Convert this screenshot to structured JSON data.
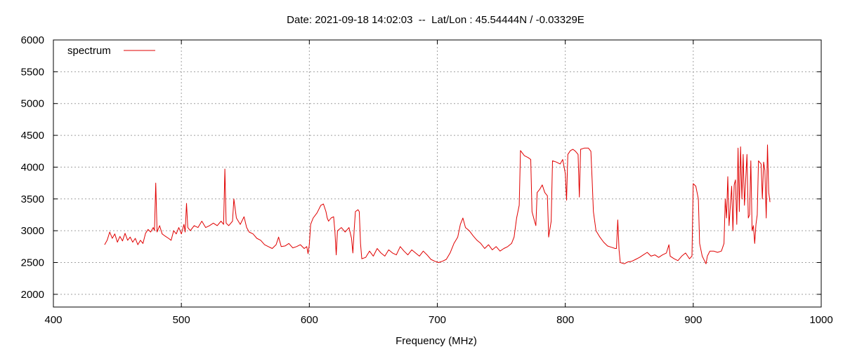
{
  "chart_data": {
    "type": "line",
    "title": "Date: 2021-09-18 14:02:03  --  Lat/Lon : 45.54444N / -0.03329E",
    "xlabel": "Frequency (MHz)",
    "ylabel": "",
    "xlim": [
      400,
      1000
    ],
    "ylim": [
      1800,
      6000
    ],
    "xticks": [
      "400",
      "500",
      "600",
      "700",
      "800",
      "900",
      "1000"
    ],
    "yticks": [
      "2000",
      "2500",
      "3000",
      "3500",
      "4000",
      "4500",
      "5000",
      "5500",
      "6000"
    ],
    "grid": true,
    "legend": "top-left",
    "series": [
      {
        "name": "spectrum",
        "color": "#e00000",
        "points": [
          [
            440,
            2780
          ],
          [
            442,
            2850
          ],
          [
            444,
            2980
          ],
          [
            446,
            2880
          ],
          [
            448,
            2950
          ],
          [
            450,
            2820
          ],
          [
            452,
            2910
          ],
          [
            454,
            2840
          ],
          [
            456,
            2960
          ],
          [
            458,
            2850
          ],
          [
            460,
            2900
          ],
          [
            462,
            2820
          ],
          [
            464,
            2880
          ],
          [
            466,
            2780
          ],
          [
            468,
            2850
          ],
          [
            470,
            2800
          ],
          [
            472,
            2960
          ],
          [
            474,
            3020
          ],
          [
            476,
            2980
          ],
          [
            478,
            3050
          ],
          [
            479,
            3000
          ],
          [
            480,
            3750
          ],
          [
            481,
            2980
          ],
          [
            483,
            3080
          ],
          [
            485,
            2950
          ],
          [
            487,
            2920
          ],
          [
            490,
            2880
          ],
          [
            492,
            2850
          ],
          [
            494,
            3000
          ],
          [
            496,
            2950
          ],
          [
            498,
            3050
          ],
          [
            500,
            2950
          ],
          [
            502,
            3100
          ],
          [
            503,
            2980
          ],
          [
            504,
            3430
          ],
          [
            505,
            3050
          ],
          [
            507,
            3000
          ],
          [
            510,
            3080
          ],
          [
            513,
            3050
          ],
          [
            516,
            3150
          ],
          [
            519,
            3050
          ],
          [
            522,
            3080
          ],
          [
            525,
            3120
          ],
          [
            528,
            3080
          ],
          [
            531,
            3150
          ],
          [
            533,
            3100
          ],
          [
            534,
            3970
          ],
          [
            535,
            3120
          ],
          [
            537,
            3080
          ],
          [
            540,
            3150
          ],
          [
            541,
            3500
          ],
          [
            543,
            3200
          ],
          [
            546,
            3100
          ],
          [
            549,
            3220
          ],
          [
            551,
            3050
          ],
          [
            553,
            2980
          ],
          [
            556,
            2950
          ],
          [
            559,
            2880
          ],
          [
            562,
            2850
          ],
          [
            565,
            2780
          ],
          [
            568,
            2750
          ],
          [
            571,
            2720
          ],
          [
            574,
            2780
          ],
          [
            576,
            2900
          ],
          [
            578,
            2750
          ],
          [
            581,
            2760
          ],
          [
            584,
            2800
          ],
          [
            587,
            2730
          ],
          [
            590,
            2750
          ],
          [
            593,
            2780
          ],
          [
            596,
            2720
          ],
          [
            598,
            2750
          ],
          [
            599,
            2640
          ],
          [
            600,
            2780
          ],
          [
            601,
            3100
          ],
          [
            603,
            3200
          ],
          [
            606,
            3280
          ],
          [
            609,
            3400
          ],
          [
            611,
            3420
          ],
          [
            613,
            3300
          ],
          [
            614,
            3200
          ],
          [
            615,
            3150
          ],
          [
            617,
            3200
          ],
          [
            619,
            3220
          ],
          [
            620,
            2980
          ],
          [
            621,
            2620
          ],
          [
            622,
            3000
          ],
          [
            625,
            3050
          ],
          [
            628,
            2980
          ],
          [
            631,
            3050
          ],
          [
            633,
            2880
          ],
          [
            634,
            2650
          ],
          [
            635,
            3000
          ],
          [
            636,
            3300
          ],
          [
            638,
            3330
          ],
          [
            639,
            3300
          ],
          [
            640,
            2800
          ],
          [
            641,
            2560
          ],
          [
            644,
            2580
          ],
          [
            647,
            2680
          ],
          [
            650,
            2600
          ],
          [
            653,
            2720
          ],
          [
            656,
            2650
          ],
          [
            659,
            2600
          ],
          [
            662,
            2700
          ],
          [
            665,
            2650
          ],
          [
            668,
            2620
          ],
          [
            671,
            2750
          ],
          [
            674,
            2680
          ],
          [
            677,
            2620
          ],
          [
            680,
            2700
          ],
          [
            683,
            2650
          ],
          [
            686,
            2600
          ],
          [
            689,
            2680
          ],
          [
            692,
            2620
          ],
          [
            695,
            2550
          ],
          [
            698,
            2520
          ],
          [
            701,
            2500
          ],
          [
            704,
            2520
          ],
          [
            707,
            2550
          ],
          [
            710,
            2650
          ],
          [
            713,
            2800
          ],
          [
            716,
            2900
          ],
          [
            718,
            3100
          ],
          [
            720,
            3200
          ],
          [
            722,
            3050
          ],
          [
            725,
            3000
          ],
          [
            728,
            2920
          ],
          [
            731,
            2850
          ],
          [
            734,
            2800
          ],
          [
            737,
            2720
          ],
          [
            740,
            2780
          ],
          [
            743,
            2700
          ],
          [
            746,
            2750
          ],
          [
            749,
            2680
          ],
          [
            752,
            2720
          ],
          [
            755,
            2750
          ],
          [
            758,
            2800
          ],
          [
            760,
            2900
          ],
          [
            762,
            3200
          ],
          [
            764,
            3400
          ],
          [
            765,
            4260
          ],
          [
            768,
            4180
          ],
          [
            771,
            4150
          ],
          [
            773,
            4120
          ],
          [
            774,
            3300
          ],
          [
            776,
            3150
          ],
          [
            777,
            3080
          ],
          [
            778,
            3600
          ],
          [
            780,
            3650
          ],
          [
            782,
            3720
          ],
          [
            784,
            3600
          ],
          [
            786,
            3550
          ],
          [
            787,
            2900
          ],
          [
            789,
            3150
          ],
          [
            790,
            4100
          ],
          [
            793,
            4080
          ],
          [
            796,
            4050
          ],
          [
            798,
            4120
          ],
          [
            800,
            3900
          ],
          [
            801,
            3480
          ],
          [
            802,
            4200
          ],
          [
            804,
            4260
          ],
          [
            806,
            4280
          ],
          [
            808,
            4250
          ],
          [
            810,
            4200
          ],
          [
            811,
            3530
          ],
          [
            812,
            4280
          ],
          [
            815,
            4300
          ],
          [
            818,
            4300
          ],
          [
            820,
            4250
          ],
          [
            821,
            3800
          ],
          [
            822,
            3300
          ],
          [
            824,
            3000
          ],
          [
            827,
            2900
          ],
          [
            830,
            2820
          ],
          [
            833,
            2760
          ],
          [
            836,
            2740
          ],
          [
            839,
            2720
          ],
          [
            840,
            2720
          ],
          [
            841,
            3170
          ],
          [
            842,
            2700
          ],
          [
            843,
            2500
          ],
          [
            846,
            2480
          ],
          [
            849,
            2510
          ],
          [
            852,
            2520
          ],
          [
            855,
            2550
          ],
          [
            858,
            2580
          ],
          [
            861,
            2620
          ],
          [
            864,
            2660
          ],
          [
            867,
            2600
          ],
          [
            870,
            2620
          ],
          [
            873,
            2580
          ],
          [
            876,
            2620
          ],
          [
            879,
            2650
          ],
          [
            881,
            2780
          ],
          [
            882,
            2600
          ],
          [
            885,
            2560
          ],
          [
            888,
            2530
          ],
          [
            891,
            2600
          ],
          [
            894,
            2650
          ],
          [
            897,
            2560
          ],
          [
            899,
            2600
          ],
          [
            900,
            3740
          ],
          [
            902,
            3700
          ],
          [
            904,
            3500
          ],
          [
            905,
            2800
          ],
          [
            907,
            2600
          ],
          [
            909,
            2520
          ],
          [
            910,
            2480
          ],
          [
            911,
            2600
          ],
          [
            913,
            2680
          ],
          [
            916,
            2680
          ],
          [
            919,
            2660
          ],
          [
            922,
            2680
          ],
          [
            924,
            2800
          ],
          [
            925,
            3500
          ],
          [
            926,
            3200
          ],
          [
            927,
            3850
          ],
          [
            928,
            3080
          ],
          [
            929,
            3400
          ],
          [
            930,
            3700
          ],
          [
            931,
            3000
          ],
          [
            932,
            3720
          ],
          [
            933,
            3800
          ],
          [
            934,
            3100
          ],
          [
            935,
            4300
          ],
          [
            936,
            3300
          ],
          [
            937,
            4320
          ],
          [
            938,
            3500
          ],
          [
            939,
            4200
          ],
          [
            940,
            3400
          ],
          [
            941,
            3800
          ],
          [
            942,
            4200
          ],
          [
            943,
            3200
          ],
          [
            944,
            3250
          ],
          [
            945,
            4100
          ],
          [
            946,
            3000
          ],
          [
            947,
            3080
          ],
          [
            948,
            2800
          ],
          [
            949,
            3100
          ],
          [
            950,
            3250
          ],
          [
            951,
            4100
          ],
          [
            953,
            4050
          ],
          [
            954,
            3500
          ],
          [
            955,
            4080
          ],
          [
            956,
            3950
          ],
          [
            957,
            3200
          ],
          [
            958,
            4350
          ],
          [
            959,
            3600
          ],
          [
            960,
            3450
          ]
        ]
      }
    ]
  }
}
